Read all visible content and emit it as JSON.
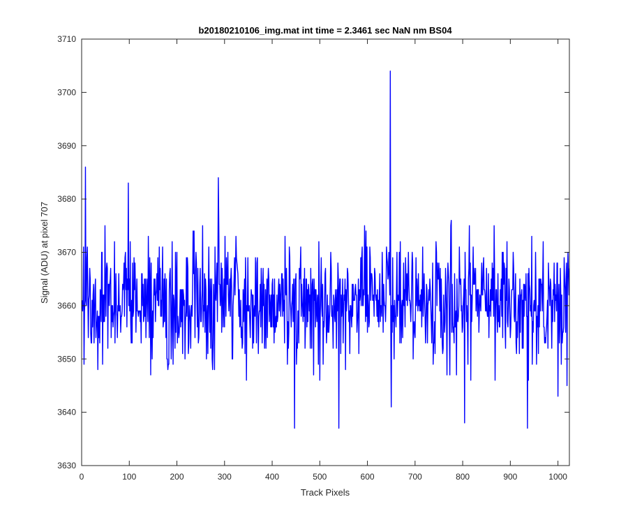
{
  "chart_data": {
    "type": "line",
    "title": "b20180210106_img.mat int time = 2.3461 sec  NaN nm BS04",
    "xlabel": "Track Pixels",
    "ylabel": "Signal (ADU) at pixel 707",
    "xlim": [
      0,
      1024
    ],
    "ylim": [
      3630,
      3710
    ],
    "xticks": [
      0,
      100,
      200,
      300,
      400,
      500,
      600,
      700,
      800,
      900,
      1000
    ],
    "yticks": [
      3630,
      3640,
      3650,
      3660,
      3670,
      3680,
      3690,
      3700,
      3710
    ],
    "grid": false,
    "legend": "none",
    "line_color": "#0000ff",
    "series_seed": 20180210,
    "series_count": 1024,
    "x_start": 1,
    "y_mean": 3661,
    "y_spread": 5.5,
    "features": [
      {
        "x": 8,
        "y": 3686
      },
      {
        "x": 5,
        "y": 3649
      },
      {
        "x": 98,
        "y": 3683
      },
      {
        "x": 287,
        "y": 3684
      },
      {
        "x": 447,
        "y": 3637
      },
      {
        "x": 540,
        "y": 3637
      },
      {
        "x": 648,
        "y": 3704
      },
      {
        "x": 650,
        "y": 3641
      },
      {
        "x": 804,
        "y": 3638
      },
      {
        "x": 936,
        "y": 3637
      },
      {
        "x": 1000,
        "y": 3643
      },
      {
        "x": 1019,
        "y": 3645
      }
    ]
  }
}
